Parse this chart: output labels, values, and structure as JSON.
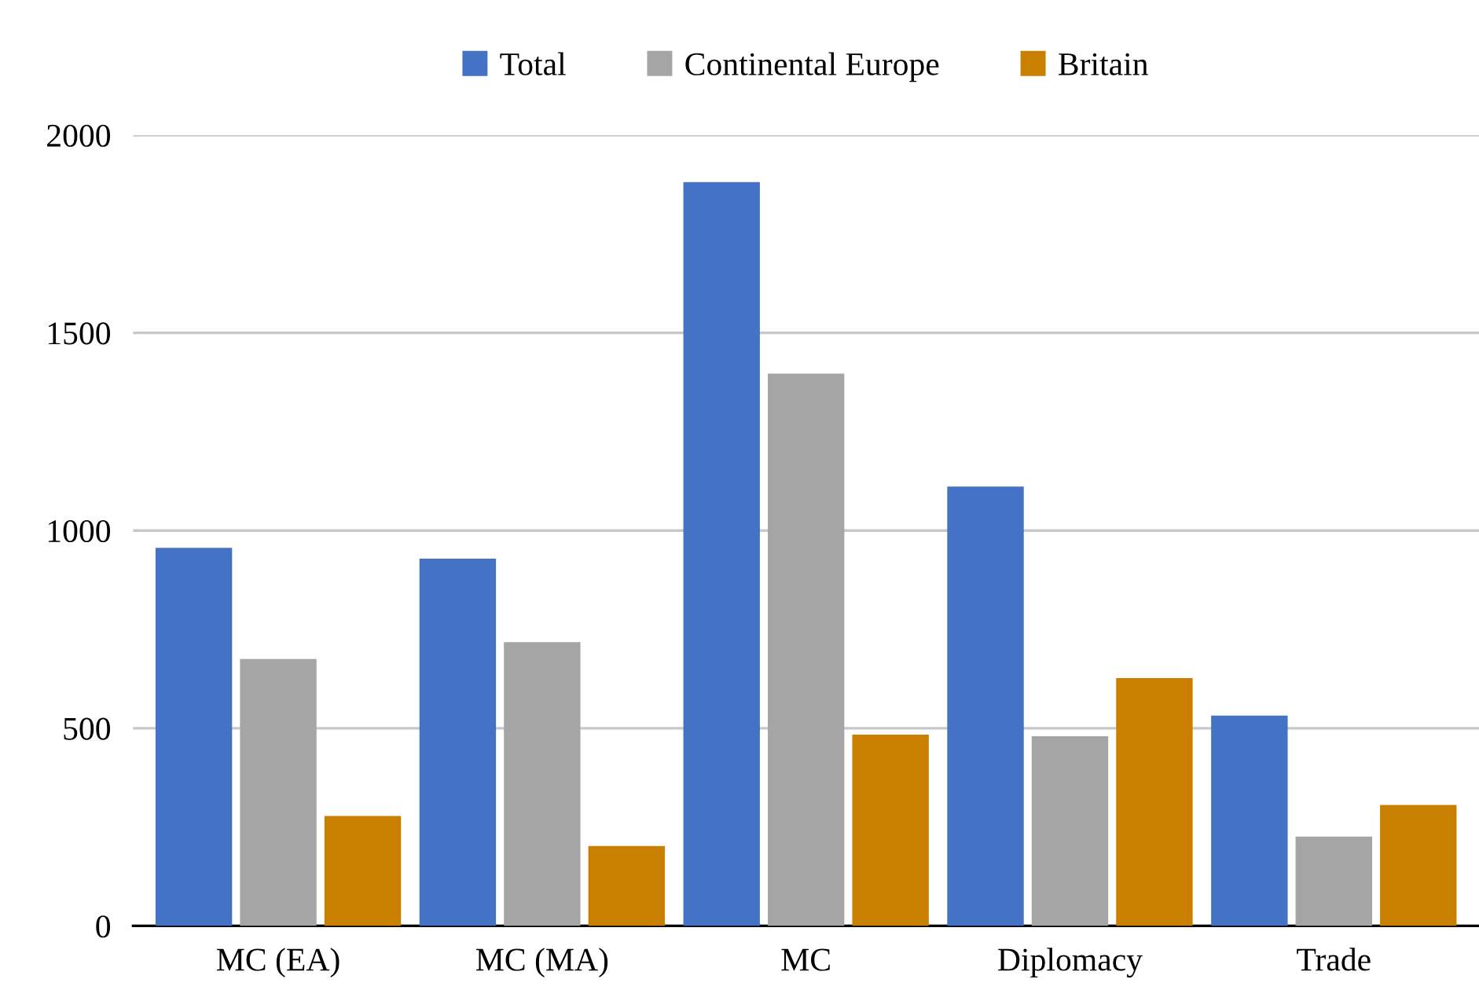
{
  "chart_data": {
    "type": "bar",
    "categories": [
      "MC (EA)",
      "MC (MA)",
      "MC",
      "Diplomacy",
      "Trade"
    ],
    "series": [
      {
        "name": "Total",
        "color": "#4472c4",
        "values": [
          956,
          929,
          1881,
          1111,
          532
        ]
      },
      {
        "name": "Continental Europe",
        "color": "#a5a5a5",
        "values": [
          675,
          718,
          1397,
          480,
          226
        ]
      },
      {
        "name": "Britain",
        "color": "#c98000",
        "values": [
          278,
          202,
          484,
          627,
          306
        ]
      }
    ],
    "ylim": [
      0,
      2000
    ],
    "yticks": [
      0,
      500,
      1000,
      1500,
      2000
    ],
    "grid": "y",
    "legend": "top"
  }
}
